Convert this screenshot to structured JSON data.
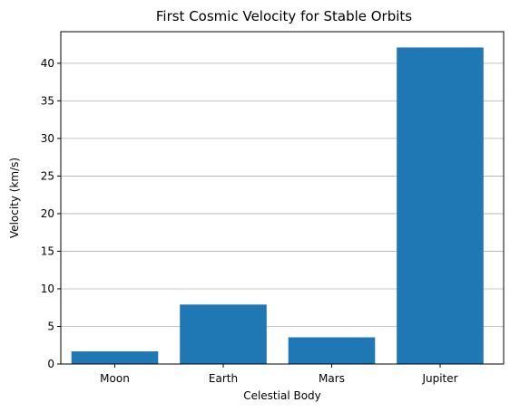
{
  "chart_data": {
    "type": "bar",
    "title": "First Cosmic Velocity for Stable Orbits",
    "xlabel": "Celestial Body",
    "ylabel": "Velocity (km/s)",
    "categories": [
      "Moon",
      "Earth",
      "Mars",
      "Jupiter"
    ],
    "values": [
      1.68,
      7.91,
      3.55,
      42.1
    ],
    "ylim": [
      0,
      44.2
    ],
    "yticks": [
      0,
      5,
      10,
      15,
      20,
      25,
      30,
      35,
      40
    ],
    "grid": "y",
    "bar_color": "#1f77b4"
  }
}
